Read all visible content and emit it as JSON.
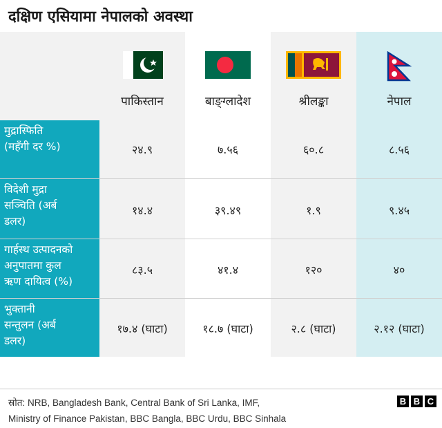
{
  "title": "दक्षिण एसियामा नेपालको अवस्था",
  "countries": [
    "पाकिस्तान",
    "बाङ्ग्लादेश",
    "श्रीलङ्का",
    "नेपाल"
  ],
  "flags": [
    "pakistan-flag-icon",
    "bangladesh-flag-icon",
    "srilanka-flag-icon",
    "nepal-flag-icon"
  ],
  "rows": [
    {
      "label": [
        "मुद्रास्फिति",
        "(महँगी दर %)"
      ],
      "values": [
        "२४.९",
        "७.५६",
        "६०.८",
        "८.५६"
      ]
    },
    {
      "label": [
        "विदेशी मुद्रा",
        "सञ्चिति (अर्ब",
        "डलर)"
      ],
      "values": [
        "१४.४",
        "३९.४९",
        "१.९",
        "९.४५"
      ]
    },
    {
      "label": [
        "गार्हस्थ उत्पादनको",
        "अनुपातमा कुल",
        "ऋण दायित्व (%)"
      ],
      "values": [
        "८३.५",
        "४१.४",
        "१२०",
        "४०"
      ]
    },
    {
      "label": [
        "भुक्तानी",
        "सन्तुलन (अर्ब",
        "डलर)"
      ],
      "values": [
        "१७.४ (घाटा)",
        "१८.७ (घाटा)",
        "२.८ (घाटा)",
        "२.१२ (घाटा)"
      ]
    }
  ],
  "source": {
    "line1": "स्रोत: NRB, Bangladesh Bank, Central Bank of Sri Lanka, IMF,",
    "line2": "Ministry of Finance Pakistan, BBC Bangla, BBC Urdu, BBC Sinhala"
  },
  "logo": [
    "B",
    "B",
    "C"
  ],
  "colors": {
    "accent": "#11a8bd",
    "nepal_highlight": "#d4eef2",
    "grey_bg": "#f2f2f2"
  }
}
